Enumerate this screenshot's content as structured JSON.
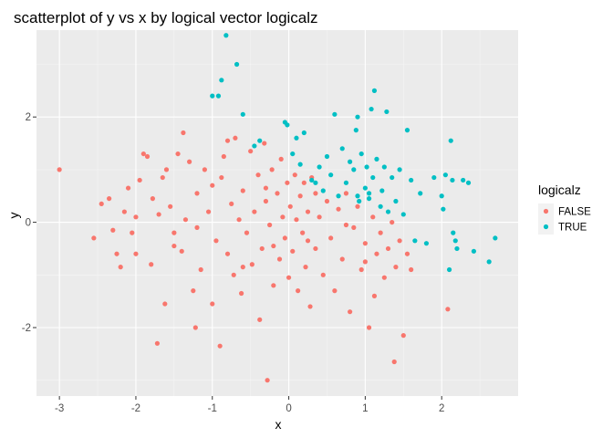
{
  "chart_data": {
    "type": "scatter",
    "title": "scatterplot of y vs x by logical vector logicalz",
    "xlabel": "x",
    "ylabel": "y",
    "xlim": [
      -3.3,
      3.0
    ],
    "ylim": [
      -3.3,
      3.65
    ],
    "x_ticks": [
      -3,
      -2,
      -1,
      0,
      1,
      2
    ],
    "y_ticks": [
      -2,
      0,
      2
    ],
    "grid": true,
    "legend": {
      "title": "logicalz",
      "placement": "right"
    },
    "series": [
      {
        "name": "FALSE",
        "color": "#F8766D",
        "points": [
          [
            -3.0,
            1.0
          ],
          [
            -2.55,
            -0.3
          ],
          [
            -2.45,
            0.35
          ],
          [
            -2.35,
            0.45
          ],
          [
            -2.3,
            -0.15
          ],
          [
            -2.25,
            -0.6
          ],
          [
            -2.2,
            -0.85
          ],
          [
            -2.15,
            0.2
          ],
          [
            -2.1,
            0.65
          ],
          [
            -2.05,
            -0.2
          ],
          [
            -2.0,
            -0.6
          ],
          [
            -1.95,
            0.8
          ],
          [
            -1.9,
            1.3
          ],
          [
            -1.85,
            1.25
          ],
          [
            -1.8,
            -0.8
          ],
          [
            -1.78,
            0.45
          ],
          [
            -1.72,
            -2.3
          ],
          [
            -1.7,
            0.15
          ],
          [
            -1.65,
            0.85
          ],
          [
            -1.62,
            -1.55
          ],
          [
            -1.6,
            1.0
          ],
          [
            -1.55,
            0.3
          ],
          [
            -1.5,
            -0.2
          ],
          [
            -1.45,
            1.3
          ],
          [
            -1.4,
            -0.55
          ],
          [
            -1.38,
            1.7
          ],
          [
            -1.35,
            0.05
          ],
          [
            -1.3,
            1.15
          ],
          [
            -1.25,
            -1.3
          ],
          [
            -1.22,
            -2.0
          ],
          [
            -1.2,
            0.55
          ],
          [
            -1.15,
            -0.9
          ],
          [
            -1.1,
            1.0
          ],
          [
            -1.05,
            0.2
          ],
          [
            -1.0,
            -1.55
          ],
          [
            -0.95,
            -0.35
          ],
          [
            -0.9,
            -2.35
          ],
          [
            -0.88,
            0.85
          ],
          [
            -0.85,
            1.25
          ],
          [
            -0.8,
            -0.6
          ],
          [
            -0.75,
            0.35
          ],
          [
            -0.72,
            -1.0
          ],
          [
            -0.7,
            1.6
          ],
          [
            -0.65,
            0.05
          ],
          [
            -0.62,
            -1.35
          ],
          [
            -0.6,
            0.6
          ],
          [
            -0.55,
            -0.2
          ],
          [
            -0.5,
            1.35
          ],
          [
            -0.48,
            -0.8
          ],
          [
            -0.45,
            0.2
          ],
          [
            -0.4,
            0.9
          ],
          [
            -0.38,
            -1.85
          ],
          [
            -0.35,
            -0.5
          ],
          [
            -0.32,
            1.5
          ],
          [
            -0.3,
            0.4
          ],
          [
            -0.28,
            -3.0
          ],
          [
            -0.25,
            -0.05
          ],
          [
            -0.22,
            1.0
          ],
          [
            -0.2,
            -1.2
          ],
          [
            -0.15,
            0.55
          ],
          [
            -0.12,
            -0.7
          ],
          [
            -0.1,
            1.2
          ],
          [
            -0.08,
            0.1
          ],
          [
            -0.05,
            -0.3
          ],
          [
            -0.02,
            0.75
          ],
          [
            0.0,
            -1.05
          ],
          [
            0.02,
            0.3
          ],
          [
            0.05,
            -0.55
          ],
          [
            0.08,
            0.9
          ],
          [
            0.1,
            0.05
          ],
          [
            0.12,
            -1.3
          ],
          [
            0.15,
            0.5
          ],
          [
            0.18,
            -0.2
          ],
          [
            0.2,
            0.75
          ],
          [
            0.22,
            -0.85
          ],
          [
            0.25,
            0.2
          ],
          [
            0.28,
            -1.6
          ],
          [
            0.3,
            0.85
          ],
          [
            0.35,
            -0.5
          ],
          [
            0.4,
            0.1
          ],
          [
            0.45,
            -1.0
          ],
          [
            0.5,
            0.4
          ],
          [
            0.55,
            -0.3
          ],
          [
            0.6,
            -1.3
          ],
          [
            0.65,
            0.25
          ],
          [
            0.7,
            -0.7
          ],
          [
            0.75,
            0.55
          ],
          [
            0.8,
            -1.7
          ],
          [
            0.85,
            -0.1
          ],
          [
            0.9,
            0.3
          ],
          [
            0.95,
            -0.9
          ],
          [
            1.0,
            -0.4
          ],
          [
            1.05,
            -2.0
          ],
          [
            1.1,
            0.1
          ],
          [
            1.12,
            -1.4
          ],
          [
            1.15,
            -0.6
          ],
          [
            1.2,
            -0.2
          ],
          [
            1.25,
            -1.05
          ],
          [
            1.3,
            -0.5
          ],
          [
            1.35,
            0.0
          ],
          [
            1.38,
            -2.65
          ],
          [
            1.4,
            -0.85
          ],
          [
            1.45,
            -0.35
          ],
          [
            1.5,
            -2.15
          ],
          [
            1.55,
            -0.6
          ],
          [
            1.6,
            -0.9
          ],
          [
            2.08,
            -1.65
          ],
          [
            -1.5,
            -0.45
          ],
          [
            -1.0,
            0.7
          ],
          [
            -0.6,
            -0.85
          ],
          [
            -0.3,
            0.65
          ],
          [
            0.25,
            -0.35
          ],
          [
            0.75,
            -0.05
          ],
          [
            -2.0,
            0.1
          ],
          [
            -1.2,
            -0.1
          ],
          [
            -0.8,
            1.55
          ],
          [
            -0.2,
            -0.45
          ],
          [
            0.35,
            0.55
          ],
          [
            1.0,
            -0.75
          ]
        ]
      },
      {
        "name": "TRUE",
        "color": "#00BFC4",
        "points": [
          [
            -1.0,
            2.4
          ],
          [
            -0.92,
            2.4
          ],
          [
            -0.88,
            2.7
          ],
          [
            -0.82,
            3.55
          ],
          [
            -0.68,
            3.0
          ],
          [
            -0.6,
            2.05
          ],
          [
            -0.45,
            1.45
          ],
          [
            -0.38,
            1.55
          ],
          [
            -0.05,
            1.9
          ],
          [
            -0.02,
            1.85
          ],
          [
            0.05,
            1.3
          ],
          [
            0.1,
            1.6
          ],
          [
            0.15,
            1.1
          ],
          [
            0.2,
            1.7
          ],
          [
            0.3,
            0.8
          ],
          [
            0.35,
            0.75
          ],
          [
            0.4,
            1.05
          ],
          [
            0.45,
            0.6
          ],
          [
            0.5,
            1.25
          ],
          [
            0.55,
            0.9
          ],
          [
            0.6,
            2.05
          ],
          [
            0.65,
            0.5
          ],
          [
            0.7,
            1.4
          ],
          [
            0.75,
            0.75
          ],
          [
            0.8,
            1.15
          ],
          [
            0.85,
            1.0
          ],
          [
            0.88,
            1.75
          ],
          [
            0.9,
            2.0
          ],
          [
            0.92,
            0.4
          ],
          [
            0.95,
            1.3
          ],
          [
            1.0,
            0.65
          ],
          [
            1.02,
            1.05
          ],
          [
            1.05,
            0.55
          ],
          [
            1.08,
            2.15
          ],
          [
            1.1,
            0.85
          ],
          [
            1.12,
            2.5
          ],
          [
            1.15,
            1.2
          ],
          [
            1.2,
            0.3
          ],
          [
            1.22,
            0.6
          ],
          [
            1.25,
            1.05
          ],
          [
            1.28,
            2.1
          ],
          [
            1.3,
            0.2
          ],
          [
            1.35,
            0.85
          ],
          [
            1.4,
            0.4
          ],
          [
            1.45,
            1.0
          ],
          [
            1.5,
            0.15
          ],
          [
            1.55,
            1.75
          ],
          [
            1.6,
            0.8
          ],
          [
            1.65,
            -0.35
          ],
          [
            1.72,
            0.55
          ],
          [
            1.8,
            -0.4
          ],
          [
            1.9,
            0.85
          ],
          [
            2.0,
            0.5
          ],
          [
            2.02,
            0.25
          ],
          [
            2.05,
            0.9
          ],
          [
            2.1,
            -0.9
          ],
          [
            2.12,
            1.55
          ],
          [
            2.14,
            0.8
          ],
          [
            2.15,
            -0.2
          ],
          [
            2.18,
            -0.35
          ],
          [
            2.2,
            -0.5
          ],
          [
            2.28,
            0.8
          ],
          [
            2.35,
            0.75
          ],
          [
            2.42,
            -0.55
          ],
          [
            2.62,
            -0.75
          ],
          [
            2.7,
            -0.3
          ],
          [
            0.9,
            0.5
          ],
          [
            1.05,
            0.45
          ]
        ]
      }
    ]
  }
}
